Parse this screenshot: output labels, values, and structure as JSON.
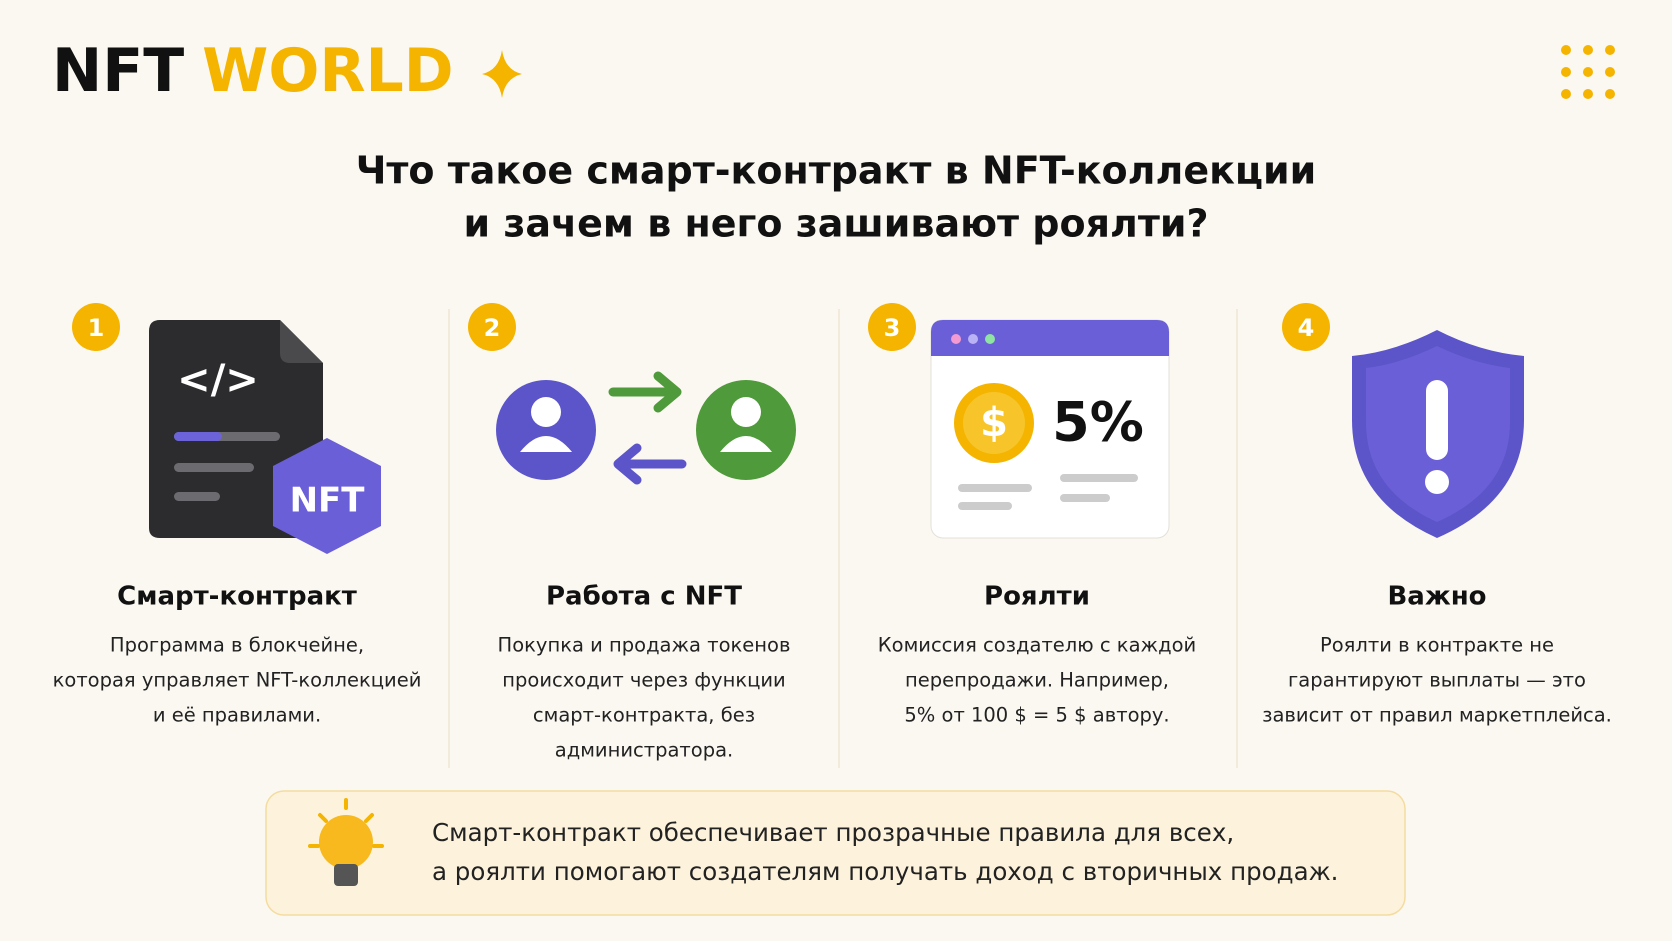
{
  "header": {
    "logo": {
      "part1": "NFT",
      "part2": "WORLD"
    }
  },
  "title": {
    "lines": [
      "Что такое смарт-контракт в NFT-коллекции",
      "и зачем в него зашивают роялти?"
    ]
  },
  "cards": [
    {
      "number": "1",
      "heading": "Смарт-контракт",
      "text": [
        "Программа в блокчейне,",
        "которая управляет NFT-коллекцией",
        "и её правилами."
      ],
      "icon_labels": [
        "</>",
        "NFT"
      ]
    },
    {
      "number": "2",
      "heading": "Работа с NFT",
      "text": [
        "Покупка и продажа токенов",
        "происходит через функции",
        "смарт-контракта, без",
        "администратора."
      ]
    },
    {
      "number": "3",
      "heading": "Роялти",
      "text": [
        "Комиссия создателю с каждой",
        "перепродажи. Например,",
        "5% от 100 $ = 5 $ автору."
      ],
      "icon_labels": [
        "$",
        "5%"
      ]
    },
    {
      "number": "4",
      "heading": "Важно",
      "text": [
        "Роялти в контракте не",
        "гарантируют выплаты — это",
        "зависит от правил маркетплейса."
      ]
    }
  ],
  "tip": {
    "lines": [
      "Смарт-контракт обеспечивает прозрачные правила для всех,",
      "а роялти помогают создателям получать доход с вторичных продаж."
    ]
  }
}
